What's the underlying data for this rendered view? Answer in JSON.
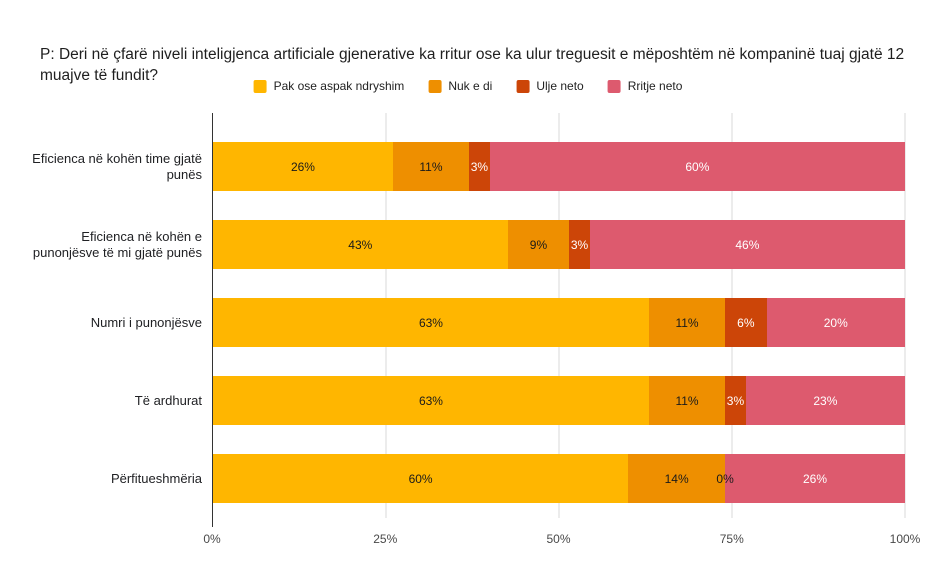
{
  "title": "P: Deri në çfarë niveli inteligjenca artificiale gjenerative ka rritur ose ka ulur treguesit e mëposhtëm në kompaninë tuaj gjatë 12 muajve të fundit?",
  "colors": {
    "background": "#ffffff",
    "axis": "#333333",
    "gridline": "#d9d9d9",
    "dark_value_label": "#1a1a1a",
    "light_value_label": "#ffffff"
  },
  "chart_data": {
    "type": "bar",
    "orientation": "horizontal",
    "stacked": true,
    "grid": true,
    "legend_position": "top",
    "xlim": [
      0,
      100
    ],
    "value_suffix": "%",
    "zero_label_color": "#1a1a1a",
    "categories": [
      "Eficienca në kohën time gjatë punës",
      "Eficienca në kohën e punonjësve të mi gjatë punës",
      "Numri i punonjësve",
      "Të ardhurat",
      "Përfitueshmëria"
    ],
    "series": [
      {
        "name": "Pak ose aspak ndryshim",
        "color": "#FFB600",
        "label_color": "#1a1a1a",
        "values": [
          26,
          43,
          63,
          63,
          60
        ]
      },
      {
        "name": "Nuk e di",
        "color": "#EE8F00",
        "label_color": "#1a1a1a",
        "values": [
          11,
          9,
          11,
          11,
          14
        ]
      },
      {
        "name": "Ulje neto",
        "color": "#CC4508",
        "label_color": "#ffffff",
        "values": [
          3,
          3,
          6,
          3,
          0
        ]
      },
      {
        "name": "Rritje neto",
        "color": "#DD5A6E",
        "label_color": "#ffffff",
        "values": [
          60,
          46,
          20,
          23,
          26
        ]
      }
    ],
    "x_ticks": [
      {
        "label": "0%",
        "pct": 0
      },
      {
        "label": "25%",
        "pct": 25
      },
      {
        "label": "50%",
        "pct": 50
      },
      {
        "label": "75%",
        "pct": 75
      },
      {
        "label": "100%",
        "pct": 100
      }
    ]
  }
}
